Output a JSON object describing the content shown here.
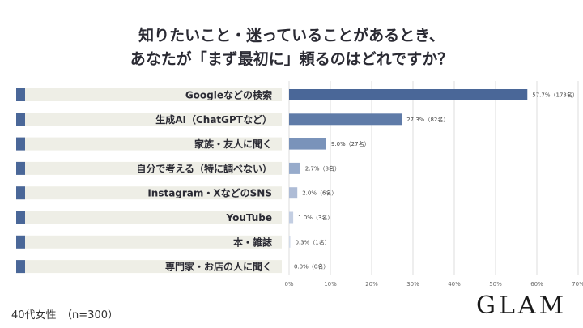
{
  "title_line1": "知りたいこと・迷っていることがあるとき、",
  "title_line2": "あなたが「まず最初に」頼るのはどれですか？",
  "footer_note": "40代女性　（n=300）",
  "logo": "GLAM",
  "colors": {
    "label_bg": "#eeeee6",
    "label_marker": "#4a6798",
    "bar_colors": [
      "#4a6798",
      "#5f7ba8",
      "#7a93ba",
      "#97abcb",
      "#aebcd6",
      "#c3cee2",
      "#d2dbe9",
      "#d2dbe9"
    ],
    "grid": "#dddddd",
    "axis_text": "#666666"
  },
  "chart_data": {
    "type": "bar",
    "orientation": "horizontal",
    "categories": [
      "Googleなどの検索",
      "生成AI（ChatGPTなど）",
      "家族・友人に聞く",
      "自分で考える（特に調べない）",
      "Instagram・XなどのSNS",
      "YouTube",
      "本・雑誌",
      "専門家・お店の人に聞く"
    ],
    "values": [
      57.7,
      27.3,
      9.0,
      2.7,
      2.0,
      1.0,
      0.3,
      0.0
    ],
    "data_labels": [
      "57.7%（173名）",
      "27.3%（82名）",
      "9.0%（27名）",
      "2.7%（8名）",
      "2.0%（6名）",
      "1.0%（3名）",
      "0.3%（1名）",
      "0.0%（0名）"
    ],
    "xlim": [
      0,
      70
    ],
    "ticks": [
      0,
      10,
      20,
      30,
      40,
      50,
      60,
      70
    ],
    "tick_labels": [
      "0%",
      "10%",
      "20%",
      "30%",
      "40%",
      "50%",
      "60%",
      "70%"
    ],
    "grid": true
  }
}
